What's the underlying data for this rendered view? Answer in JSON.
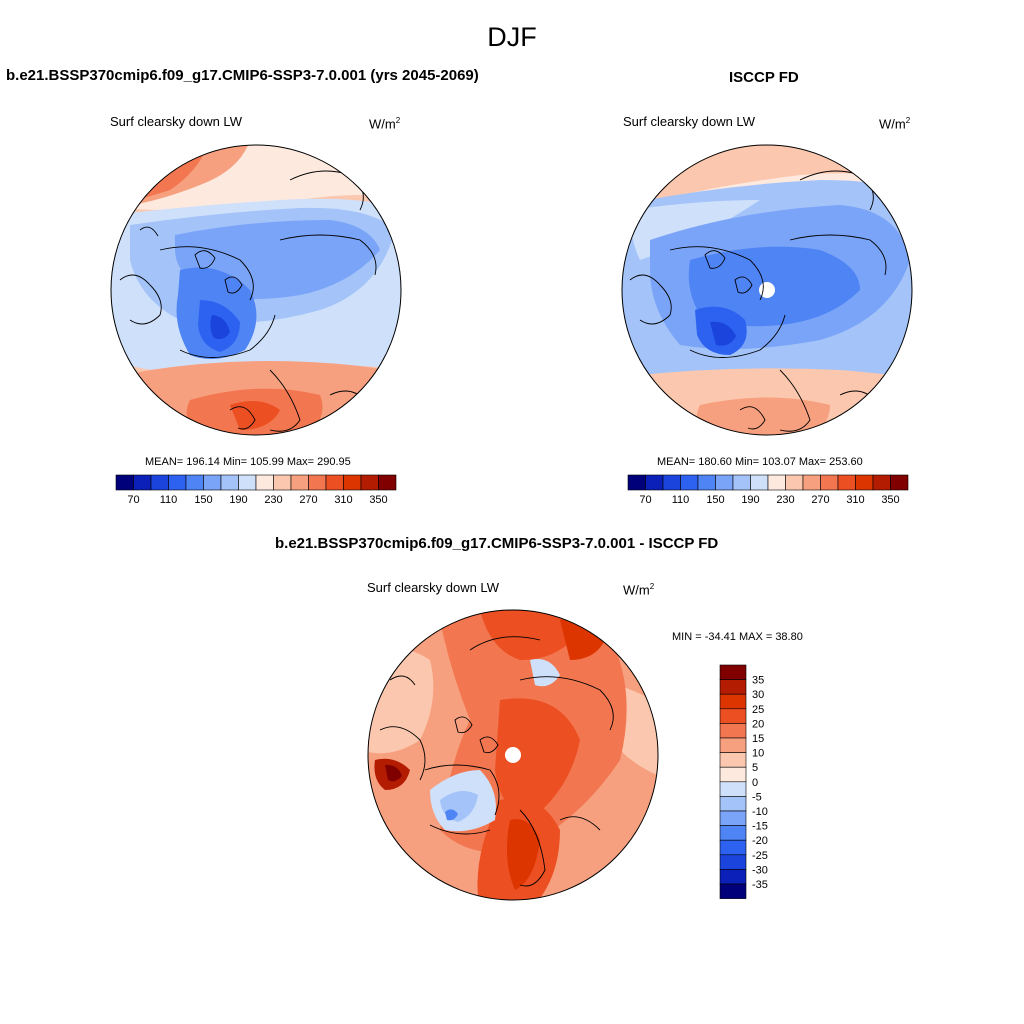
{
  "title": "DJF",
  "panels": [
    {
      "id": "model",
      "title": "b.e21.BSSP370cmip6.f09_g17.CMIP6-SSP3-7.0.001 (yrs 2045-2069)",
      "variable": "Surf clearsky down LW",
      "units": "W/m",
      "units_sup": "2",
      "stats": "MEAN= 196.14  Min= 105.99  Max= 290.95",
      "mean": 196.14,
      "min": 105.99,
      "max": 290.95
    },
    {
      "id": "obs",
      "title": "ISCCP FD",
      "variable": "Surf clearsky down LW",
      "units": "W/m",
      "units_sup": "2",
      "stats": "MEAN= 180.60  Min= 103.07  Max= 253.60",
      "mean": 180.6,
      "min": 103.07,
      "max": 253.6
    },
    {
      "id": "diff",
      "title": "b.e21.BSSP370cmip6.f09_g17.CMIP6-SSP3-7.0.001 - ISCCP FD",
      "variable": "Surf clearsky down LW",
      "units": "W/m",
      "units_sup": "2",
      "stats": "MIN = -34.41 MAX =  38.80",
      "min": -34.41,
      "max": 38.8
    }
  ],
  "colorbar_abs": {
    "colors": [
      "#00007a",
      "#0a20b8",
      "#1a44dc",
      "#2d62f0",
      "#4f84f5",
      "#7aa4f7",
      "#a3c3f9",
      "#cfe0fb",
      "#fde9de",
      "#fbc7ae",
      "#f7a07f",
      "#f2764f",
      "#ec4f22",
      "#dd3500",
      "#b31c00",
      "#800000"
    ],
    "labels": [
      "70",
      "110",
      "150",
      "190",
      "230",
      "270",
      "310",
      "350"
    ]
  },
  "colorbar_diff": {
    "colors": [
      "#800000",
      "#b31c00",
      "#dd3500",
      "#ec4f22",
      "#f2764f",
      "#f7a07f",
      "#fbc7ae",
      "#fde9de",
      "#cfe0fb",
      "#a3c3f9",
      "#7aa4f7",
      "#4f84f5",
      "#2d62f0",
      "#1a44dc",
      "#0a20b8",
      "#00007a"
    ],
    "labels": [
      "35",
      "30",
      "25",
      "20",
      "15",
      "10",
      "5",
      "0",
      "-5",
      "-10",
      "-15",
      "-20",
      "-25",
      "-30",
      "-35"
    ]
  }
}
